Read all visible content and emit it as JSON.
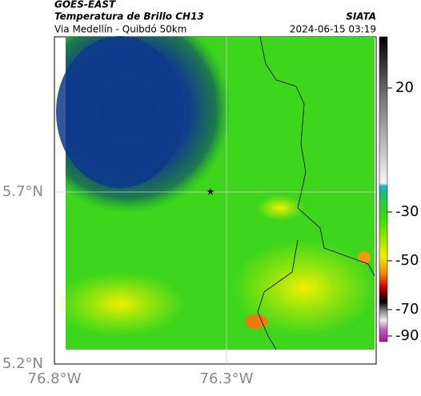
{
  "header": {
    "title": "GOES-EAST",
    "subtitle": "Temperatura de Brillo CH13",
    "source": "SIATA",
    "route": "Via Medellín - Quibdó 50km",
    "datetime": "2024-06-15 03:19"
  },
  "map": {
    "lon_ticks": [
      "76.8°W",
      "76.3°W"
    ],
    "lat_ticks": [
      "5.7°N",
      "5.2°N"
    ]
  },
  "colorbar": {
    "ticks": [
      "20",
      "-30",
      "-50",
      "-70",
      "-90"
    ]
  }
}
